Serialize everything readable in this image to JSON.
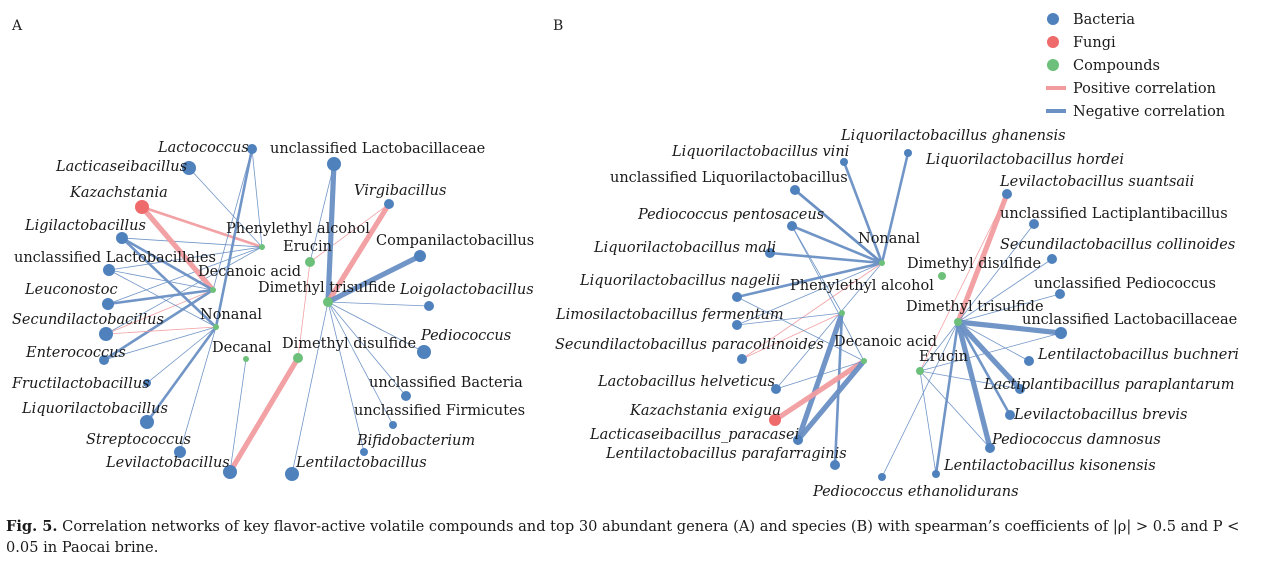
{
  "colors": {
    "bacteria": "#4f81bd",
    "fungi": "#ef6a6a",
    "compound": "#6cc07a",
    "positive": "#f29ca0",
    "negative": "#6a90c4"
  },
  "legend": [
    {
      "label": "Bacteria",
      "kind": "bacteria"
    },
    {
      "label": "Fungi",
      "kind": "fungi"
    },
    {
      "label": "Compounds",
      "kind": "compound"
    },
    {
      "label": "Positive correlation",
      "kind": "positive"
    },
    {
      "label": "Negative correlation",
      "kind": "negative"
    }
  ],
  "panels": [
    {
      "letter": "A",
      "nodes": [
        {
          "id": "lactococcus",
          "label": "Lactococcus",
          "italic": true,
          "type": "bacteria"
        },
        {
          "id": "unc_lactobacillaceae",
          "label": "unclassified Lactobacillaceae",
          "italic": false,
          "type": "bacteria"
        },
        {
          "id": "lacticaseibacillus",
          "label": "Lacticaseibacillus",
          "italic": true,
          "type": "bacteria"
        },
        {
          "id": "kazachstania",
          "label": "Kazachstania",
          "italic": true,
          "type": "fungi"
        },
        {
          "id": "virgibacillus",
          "label": "Virgibacillus",
          "italic": true,
          "type": "bacteria"
        },
        {
          "id": "ligilactobacillus",
          "label": "Ligilactobacillus",
          "italic": true,
          "type": "bacteria"
        },
        {
          "id": "phenylethyl",
          "label": "Phenylethyl alcohol",
          "italic": false,
          "type": "compound"
        },
        {
          "id": "erucin",
          "label": "Erucin",
          "italic": false,
          "type": "compound"
        },
        {
          "id": "companilactobacillus",
          "label": "Companilactobacillus",
          "italic": false,
          "type": "bacteria"
        },
        {
          "id": "unc_lactobacillales",
          "label": "unclassified Lactobacillales",
          "italic": false,
          "type": "bacteria"
        },
        {
          "id": "decanoic",
          "label": "Decanoic acid",
          "italic": false,
          "type": "compound"
        },
        {
          "id": "leuconostoc",
          "label": "Leuconostoc",
          "italic": true,
          "type": "bacteria"
        },
        {
          "id": "dmts",
          "label": "Dimethyl trisulfide",
          "italic": false,
          "type": "compound"
        },
        {
          "id": "loigolactobacillus",
          "label": "Loigolactobacillus",
          "italic": true,
          "type": "bacteria"
        },
        {
          "id": "secundilactobacillus",
          "label": "Secundilactobacillus",
          "italic": true,
          "type": "bacteria"
        },
        {
          "id": "nonanal",
          "label": "Nonanal",
          "italic": false,
          "type": "compound"
        },
        {
          "id": "pediococcus",
          "label": "Pediococcus",
          "italic": true,
          "type": "bacteria"
        },
        {
          "id": "enterococcus",
          "label": "Enterococcus",
          "italic": true,
          "type": "bacteria"
        },
        {
          "id": "decanal",
          "label": "Decanal",
          "italic": false,
          "type": "compound"
        },
        {
          "id": "dmds",
          "label": "Dimethyl disulfide",
          "italic": false,
          "type": "compound"
        },
        {
          "id": "fructilactobacillus",
          "label": "Fructilactobacillus",
          "italic": true,
          "type": "bacteria"
        },
        {
          "id": "unc_bacteria",
          "label": "unclassified Bacteria",
          "italic": false,
          "type": "bacteria"
        },
        {
          "id": "liquorilactobacillus",
          "label": "Liquorilactobacillus",
          "italic": true,
          "type": "bacteria"
        },
        {
          "id": "unc_firmicutes",
          "label": "unclassified Firmicutes",
          "italic": false,
          "type": "bacteria"
        },
        {
          "id": "streptococcus",
          "label": "Streptococcus",
          "italic": true,
          "type": "bacteria"
        },
        {
          "id": "bifidobacterium",
          "label": "Bifidobacterium",
          "italic": true,
          "type": "bacteria"
        },
        {
          "id": "levilactobacillus",
          "label": "Levilactobacillus",
          "italic": true,
          "type": "bacteria"
        },
        {
          "id": "lentilactobacillus",
          "label": "Lentilactobacillus",
          "italic": true,
          "type": "bacteria"
        }
      ],
      "edges": [
        {
          "from": "phenylethyl",
          "to": "lactococcus",
          "sign": "negative",
          "strength": 1
        },
        {
          "from": "phenylethyl",
          "to": "lacticaseibacillus",
          "sign": "negative",
          "strength": 1
        },
        {
          "from": "phenylethyl",
          "to": "kazachstania",
          "sign": "positive",
          "strength": 2
        },
        {
          "from": "phenylethyl",
          "to": "ligilactobacillus",
          "sign": "negative",
          "strength": 1
        },
        {
          "from": "phenylethyl",
          "to": "unc_lactobacillales",
          "sign": "negative",
          "strength": 1
        },
        {
          "from": "phenylethyl",
          "to": "leuconostoc",
          "sign": "negative",
          "strength": 1
        },
        {
          "from": "phenylethyl",
          "to": "secundilactobacillus",
          "sign": "negative",
          "strength": 1
        },
        {
          "from": "decanoic",
          "to": "lactococcus",
          "sign": "negative",
          "strength": 1
        },
        {
          "from": "decanoic",
          "to": "kazachstania",
          "sign": "positive",
          "strength": 3
        },
        {
          "from": "decanoic",
          "to": "ligilactobacillus",
          "sign": "negative",
          "strength": 2
        },
        {
          "from": "decanoic",
          "to": "unc_lactobacillales",
          "sign": "negative",
          "strength": 1
        },
        {
          "from": "decanoic",
          "to": "leuconostoc",
          "sign": "negative",
          "strength": 2
        },
        {
          "from": "decanoic",
          "to": "secundilactobacillus",
          "sign": "positive",
          "strength": 1
        },
        {
          "from": "decanoic",
          "to": "enterococcus",
          "sign": "negative",
          "strength": 2
        },
        {
          "from": "nonanal",
          "to": "lactococcus",
          "sign": "negative",
          "strength": 2
        },
        {
          "from": "nonanal",
          "to": "ligilactobacillus",
          "sign": "negative",
          "strength": 2
        },
        {
          "from": "nonanal",
          "to": "unc_lactobacillales",
          "sign": "negative",
          "strength": 1
        },
        {
          "from": "nonanal",
          "to": "secundilactobacillus",
          "sign": "positive",
          "strength": 1
        },
        {
          "from": "nonanal",
          "to": "enterococcus",
          "sign": "negative",
          "strength": 1
        },
        {
          "from": "nonanal",
          "to": "fructilactobacillus",
          "sign": "negative",
          "strength": 1
        },
        {
          "from": "nonanal",
          "to": "liquorilactobacillus",
          "sign": "negative",
          "strength": 2
        },
        {
          "from": "nonanal",
          "to": "streptococcus",
          "sign": "negative",
          "strength": 1
        },
        {
          "from": "decanal",
          "to": "levilactobacillus",
          "sign": "negative",
          "strength": 1
        },
        {
          "from": "erucin",
          "to": "virgibacillus",
          "sign": "positive",
          "strength": 1
        },
        {
          "from": "erucin",
          "to": "unc_lactobacillaceae",
          "sign": "negative",
          "strength": 1
        },
        {
          "from": "erucin",
          "to": "dmds",
          "sign": "positive",
          "strength": 1
        },
        {
          "from": "dmts",
          "to": "unc_lactobacillaceae",
          "sign": "negative",
          "strength": 3
        },
        {
          "from": "dmts",
          "to": "virgibacillus",
          "sign": "positive",
          "strength": 3
        },
        {
          "from": "dmts",
          "to": "companilactobacillus",
          "sign": "negative",
          "strength": 3
        },
        {
          "from": "dmts",
          "to": "loigolactobacillus",
          "sign": "negative",
          "strength": 1
        },
        {
          "from": "dmts",
          "to": "pediococcus",
          "sign": "negative",
          "strength": 1
        },
        {
          "from": "dmts",
          "to": "unc_bacteria",
          "sign": "negative",
          "strength": 1
        },
        {
          "from": "dmts",
          "to": "unc_firmicutes",
          "sign": "negative",
          "strength": 1
        },
        {
          "from": "dmts",
          "to": "bifidobacterium",
          "sign": "negative",
          "strength": 1
        },
        {
          "from": "dmts",
          "to": "lentilactobacillus",
          "sign": "negative",
          "strength": 1
        },
        {
          "from": "dmds",
          "to": "levilactobacillus",
          "sign": "positive",
          "strength": 3
        }
      ]
    },
    {
      "letter": "B",
      "nodes": [
        {
          "id": "lq_ghanensis",
          "label": "Liquorilactobacillus ghanensis",
          "italic": true,
          "type": "bacteria"
        },
        {
          "id": "lq_vini",
          "label": "Liquorilactobacillus vini",
          "italic": true,
          "type": "bacteria"
        },
        {
          "id": "lq_hordei",
          "label": "Liquorilactobacillus hordei",
          "italic": true,
          "type": "bacteria"
        },
        {
          "id": "unc_liquori",
          "label": "unclassified Liquorilactobacillus",
          "italic": false,
          "type": "bacteria"
        },
        {
          "id": "lv_suantsaii",
          "label": "Levilactobacillus suantsaii",
          "italic": true,
          "type": "bacteria"
        },
        {
          "id": "pd_pentosaceus",
          "label": "Pediococcus pentosaceus",
          "italic": true,
          "type": "bacteria"
        },
        {
          "id": "unc_lactiplant",
          "label": "unclassified Lactiplantibacillus",
          "italic": false,
          "type": "bacteria"
        },
        {
          "id": "nonanal_b",
          "label": "Nonanal",
          "italic": false,
          "type": "compound"
        },
        {
          "id": "lq_mali",
          "label": "Liquorilactobacillus mali",
          "italic": true,
          "type": "bacteria"
        },
        {
          "id": "sc_collinoides",
          "label": "Secundilactobacillus collinoides",
          "italic": true,
          "type": "bacteria"
        },
        {
          "id": "dmds_b",
          "label": "Dimethyl disulfide",
          "italic": false,
          "type": "compound"
        },
        {
          "id": "lq_nagelii",
          "label": "Liquorilactobacillus nagelii",
          "italic": true,
          "type": "bacteria"
        },
        {
          "id": "phenylethyl_b",
          "label": "Phenylethyl alcohol",
          "italic": false,
          "type": "compound"
        },
        {
          "id": "unc_pediococcus",
          "label": "unclassified Pediococcus",
          "italic": false,
          "type": "bacteria"
        },
        {
          "id": "dmts_b",
          "label": "Dimethyl trisulfide",
          "italic": false,
          "type": "compound"
        },
        {
          "id": "lm_fermentum",
          "label": "Limosilactobacillus fermentum",
          "italic": true,
          "type": "bacteria"
        },
        {
          "id": "unc_lactobacillaceae_b",
          "label": "unclassified Lactobacillaceae",
          "italic": false,
          "type": "bacteria"
        },
        {
          "id": "decanoic_b",
          "label": "Decanoic acid",
          "italic": false,
          "type": "compound"
        },
        {
          "id": "sc_paracollinoides",
          "label": "Secundilactobacillus paracollinoides",
          "italic": true,
          "type": "bacteria"
        },
        {
          "id": "erucin_b",
          "label": "Erucin",
          "italic": false,
          "type": "compound"
        },
        {
          "id": "lt_buchneri",
          "label": "Lentilactobacillus buchneri",
          "italic": true,
          "type": "bacteria"
        },
        {
          "id": "lb_helveticus",
          "label": "Lactobacillus helveticus",
          "italic": true,
          "type": "bacteria"
        },
        {
          "id": "lp_paraplantarum",
          "label": "Lactiplantibacillus paraplantarum",
          "italic": true,
          "type": "bacteria"
        },
        {
          "id": "kz_exigua",
          "label": "Kazachstania exigua",
          "italic": true,
          "type": "fungi"
        },
        {
          "id": "lv_brevis",
          "label": "Levilactobacillus brevis",
          "italic": true,
          "type": "bacteria"
        },
        {
          "id": "lc_paracasei",
          "label": "Lacticaseibacillus_paracasei",
          "italic": true,
          "type": "bacteria"
        },
        {
          "id": "pd_damnosus",
          "label": "Pediococcus damnosus",
          "italic": true,
          "type": "bacteria"
        },
        {
          "id": "lt_parafarraginis",
          "label": "Lentilactobacillus parafarraginis",
          "italic": true,
          "type": "bacteria"
        },
        {
          "id": "lt_kisonensis",
          "label": "Lentilactobacillus kisonensis",
          "italic": true,
          "type": "bacteria"
        },
        {
          "id": "pd_ethanolidurans",
          "label": "Pediococcus ethanolidurans",
          "italic": true,
          "type": "bacteria"
        }
      ],
      "edges": [
        {
          "from": "nonanal_b",
          "to": "lq_ghanensis",
          "sign": "negative",
          "strength": 2
        },
        {
          "from": "nonanal_b",
          "to": "lq_vini",
          "sign": "negative",
          "strength": 2
        },
        {
          "from": "nonanal_b",
          "to": "lq_hordei",
          "sign": "negative",
          "strength": 2
        },
        {
          "from": "nonanal_b",
          "to": "unc_liquori",
          "sign": "negative",
          "strength": 2
        },
        {
          "from": "nonanal_b",
          "to": "pd_pentosaceus",
          "sign": "negative",
          "strength": 2
        },
        {
          "from": "nonanal_b",
          "to": "lq_mali",
          "sign": "negative",
          "strength": 2
        },
        {
          "from": "nonanal_b",
          "to": "lq_nagelii",
          "sign": "negative",
          "strength": 2
        },
        {
          "from": "nonanal_b",
          "to": "lm_fermentum",
          "sign": "negative",
          "strength": 1
        },
        {
          "from": "nonanal_b",
          "to": "sc_paracollinoides",
          "sign": "positive",
          "strength": 1
        },
        {
          "from": "nonanal_b",
          "to": "lb_helveticus",
          "sign": "negative",
          "strength": 1
        },
        {
          "from": "phenylethyl_b",
          "to": "pd_pentosaceus",
          "sign": "negative",
          "strength": 1
        },
        {
          "from": "phenylethyl_b",
          "to": "lm_fermentum",
          "sign": "negative",
          "strength": 1
        },
        {
          "from": "phenylethyl_b",
          "to": "sc_paracollinoides",
          "sign": "positive",
          "strength": 1
        },
        {
          "from": "phenylethyl_b",
          "to": "lc_paracasei",
          "sign": "negative",
          "strength": 3
        },
        {
          "from": "phenylethyl_b",
          "to": "lt_parafarraginis",
          "sign": "negative",
          "strength": 2
        },
        {
          "from": "decanoic_b",
          "to": "pd_pentosaceus",
          "sign": "negative",
          "strength": 1
        },
        {
          "from": "decanoic_b",
          "to": "kz_exigua",
          "sign": "positive",
          "strength": 3
        },
        {
          "from": "decanoic_b",
          "to": "lc_paracasei",
          "sign": "negative",
          "strength": 3
        },
        {
          "from": "decanoic_b",
          "to": "lb_helveticus",
          "sign": "negative",
          "strength": 1
        },
        {
          "from": "decanoic_b",
          "to": "lq_nagelii",
          "sign": "negative",
          "strength": 1
        },
        {
          "from": "erucin_b",
          "to": "lv_suantsaii",
          "sign": "positive",
          "strength": 1
        },
        {
          "from": "erucin_b",
          "to": "unc_lactobacillaceae_b",
          "sign": "negative",
          "strength": 1
        },
        {
          "from": "erucin_b",
          "to": "lp_paraplantarum",
          "sign": "negative",
          "strength": 1
        },
        {
          "from": "erucin_b",
          "to": "pd_damnosus",
          "sign": "negative",
          "strength": 1
        },
        {
          "from": "erucin_b",
          "to": "lt_kisonensis",
          "sign": "negative",
          "strength": 1
        },
        {
          "from": "dmts_b",
          "to": "lv_suantsaii",
          "sign": "positive",
          "strength": 3
        },
        {
          "from": "dmts_b",
          "to": "unc_lactiplant",
          "sign": "negative",
          "strength": 1
        },
        {
          "from": "dmts_b",
          "to": "sc_collinoides",
          "sign": "negative",
          "strength": 1
        },
        {
          "from": "dmts_b",
          "to": "unc_pediococcus",
          "sign": "negative",
          "strength": 1
        },
        {
          "from": "dmts_b",
          "to": "unc_lactobacillaceae_b",
          "sign": "negative",
          "strength": 3
        },
        {
          "from": "dmts_b",
          "to": "lt_buchneri",
          "sign": "negative",
          "strength": 1
        },
        {
          "from": "dmts_b",
          "to": "lp_paraplantarum",
          "sign": "negative",
          "strength": 3
        },
        {
          "from": "dmts_b",
          "to": "lv_brevis",
          "sign": "negative",
          "strength": 2
        },
        {
          "from": "dmts_b",
          "to": "pd_damnosus",
          "sign": "negative",
          "strength": 3
        },
        {
          "from": "dmts_b",
          "to": "lt_kisonensis",
          "sign": "negative",
          "strength": 2
        },
        {
          "from": "dmts_b",
          "to": "pd_ethanolidurans",
          "sign": "negative",
          "strength": 1
        },
        {
          "from": "dmts_b",
          "to": "erucin_b",
          "sign": "negative",
          "strength": 1
        }
      ]
    }
  ],
  "caption": {
    "figure": "Fig. 5.",
    "text": "Correlation networks of key flavor-active volatile compounds and top 30 abundant genera (A) and species (B) with spearman’s coefficients of |ρ| > 0.5 and P < 0.05 in Paocai brine."
  }
}
